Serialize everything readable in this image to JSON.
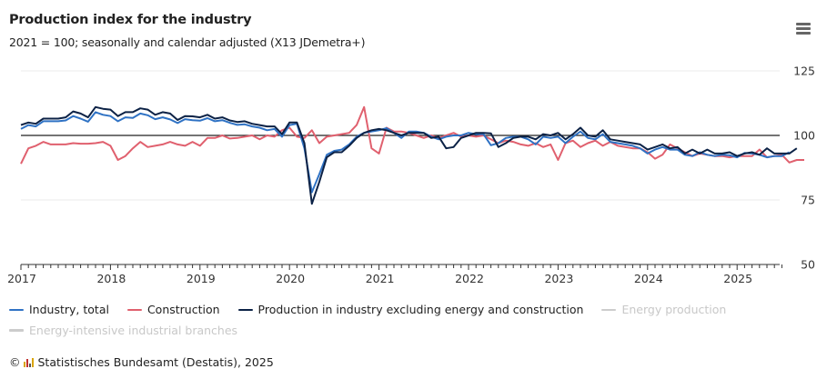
{
  "header": {
    "title": "Production index for the industry",
    "subtitle": "2021 = 100; seasonally and calendar adjusted (X13 JDemetra+)",
    "menu_icon": "hamburger-menu-icon"
  },
  "footer": {
    "copyright_symbol": "©",
    "logo_icon": "destatis-logo-icon",
    "credit": "Statistisches Bundesamt (Destatis), 2025"
  },
  "chart_data": {
    "type": "line",
    "title": "Production index for the industry",
    "subtitle": "2021 = 100; seasonally and calendar adjusted (X13 JDemetra+)",
    "xlabel": "",
    "ylabel": "",
    "x_start": "2017-01",
    "x_frequency": "monthly",
    "x_ticks": [
      "2017",
      "2018",
      "2019",
      "2020",
      "2021",
      "2022",
      "2023",
      "2024",
      "2025"
    ],
    "y_ticks": [
      50,
      75,
      100,
      125
    ],
    "ylim": [
      50,
      125
    ],
    "xlim": [
      "2017-01",
      "2025-07"
    ],
    "y_axis_side": "right",
    "reference_line": 100,
    "grid": "horizontal",
    "legend_position": "bottom",
    "series": [
      {
        "name": "Industry, total",
        "color": "#2f72c4",
        "visible": true,
        "values": [
          102.5,
          104,
          103.5,
          105.5,
          105.5,
          105.5,
          105.8,
          107.5,
          106.5,
          105.3,
          109,
          108,
          107.5,
          105.5,
          107,
          106.8,
          108.5,
          107.8,
          106.3,
          107,
          106.2,
          104.8,
          106.3,
          105.9,
          105.7,
          106.7,
          105.5,
          105.9,
          104.9,
          104.1,
          104.3,
          103.5,
          103,
          102,
          102.5,
          99.5,
          104,
          104.5,
          95,
          78,
          85,
          92.5,
          94,
          94.5,
          96.5,
          99.5,
          101,
          101.5,
          102,
          102.8,
          101,
          99,
          101.5,
          101.5,
          101,
          99.5,
          98.5,
          99.5,
          100,
          100,
          101,
          100.5,
          100.5,
          96.2,
          97,
          99,
          99.5,
          99.5,
          98.5,
          96.5,
          99.5,
          99,
          99.5,
          97,
          99.5,
          101.5,
          99,
          98.5,
          100.5,
          97.5,
          97,
          96.5,
          96,
          95,
          93,
          94.5,
          95.5,
          94.5,
          94.5,
          92.5,
          92,
          93.5,
          92.5,
          92,
          92.5,
          92.3,
          91.5,
          93.2,
          93,
          92.5,
          91.5,
          92,
          92,
          93.5
        ]
      },
      {
        "name": "Construction",
        "color": "#e0606e",
        "visible": true,
        "values": [
          89,
          95,
          96,
          97.5,
          96.5,
          96.5,
          96.5,
          97,
          96.8,
          96.8,
          97,
          97.5,
          96,
          90.5,
          92,
          95,
          97.5,
          95.5,
          96,
          96.5,
          97.5,
          96.5,
          96,
          97.5,
          96,
          99,
          99,
          100,
          98.8,
          99,
          99.5,
          100,
          98.5,
          100,
          99.5,
          102,
          103,
          99.5,
          99,
          102,
          97,
          99.5,
          100,
          100.5,
          101,
          104,
          111,
          95,
          93,
          103,
          101.5,
          101.5,
          101,
          100,
          99,
          100,
          99,
          100,
          101,
          99.5,
          100,
          99.5,
          100,
          98.5,
          97,
          98,
          97.5,
          96.5,
          96,
          97,
          95.5,
          96.5,
          90.5,
          97,
          98,
          95.5,
          97,
          98,
          96,
          97.5,
          96,
          95.5,
          95,
          95,
          93.5,
          91,
          92.5,
          96.5,
          95,
          93.5,
          92,
          93,
          92.5,
          92,
          92,
          91.5,
          92,
          92,
          92,
          94.5,
          91.5,
          92,
          92.5,
          89.5,
          90.5,
          90.5
        ]
      },
      {
        "name": "Production in industry excluding energy and construction",
        "color": "#0c2246",
        "visible": true,
        "values": [
          104,
          105,
          104.5,
          106.5,
          106.5,
          106.5,
          107,
          109.3,
          108.5,
          107,
          111,
          110.3,
          110,
          107.5,
          109,
          109,
          110.5,
          110,
          108,
          109,
          108.5,
          106,
          107.5,
          107.4,
          107,
          108,
          106.5,
          107,
          105.8,
          105.2,
          105.5,
          104.5,
          104,
          103.5,
          103.5,
          100.5,
          105,
          105,
          97,
          73.5,
          82,
          91.5,
          93.5,
          93.5,
          96,
          99,
          101,
          102,
          102.5,
          102,
          101,
          100,
          101,
          101,
          101,
          99,
          99.5,
          95,
          95.5,
          99,
          100,
          101,
          101,
          100.8,
          95.5,
          97,
          99,
          99.5,
          99.5,
          98.5,
          100.5,
          100,
          101,
          98.5,
          100.5,
          103,
          100,
          99.5,
          102,
          98.5,
          98,
          97.5,
          97,
          96.5,
          94.5,
          95.5,
          96.5,
          95,
          95.5,
          93,
          94.5,
          93,
          94.5,
          93,
          93,
          93.5,
          92,
          93,
          93.5,
          92.5,
          95,
          93,
          93,
          93,
          95
        ]
      },
      {
        "name": "Energy production",
        "color": "#cccccc",
        "visible": false,
        "values": []
      },
      {
        "name": "Energy-intensive industrial branches",
        "color": "#cccccc",
        "visible": false,
        "values": []
      }
    ]
  }
}
